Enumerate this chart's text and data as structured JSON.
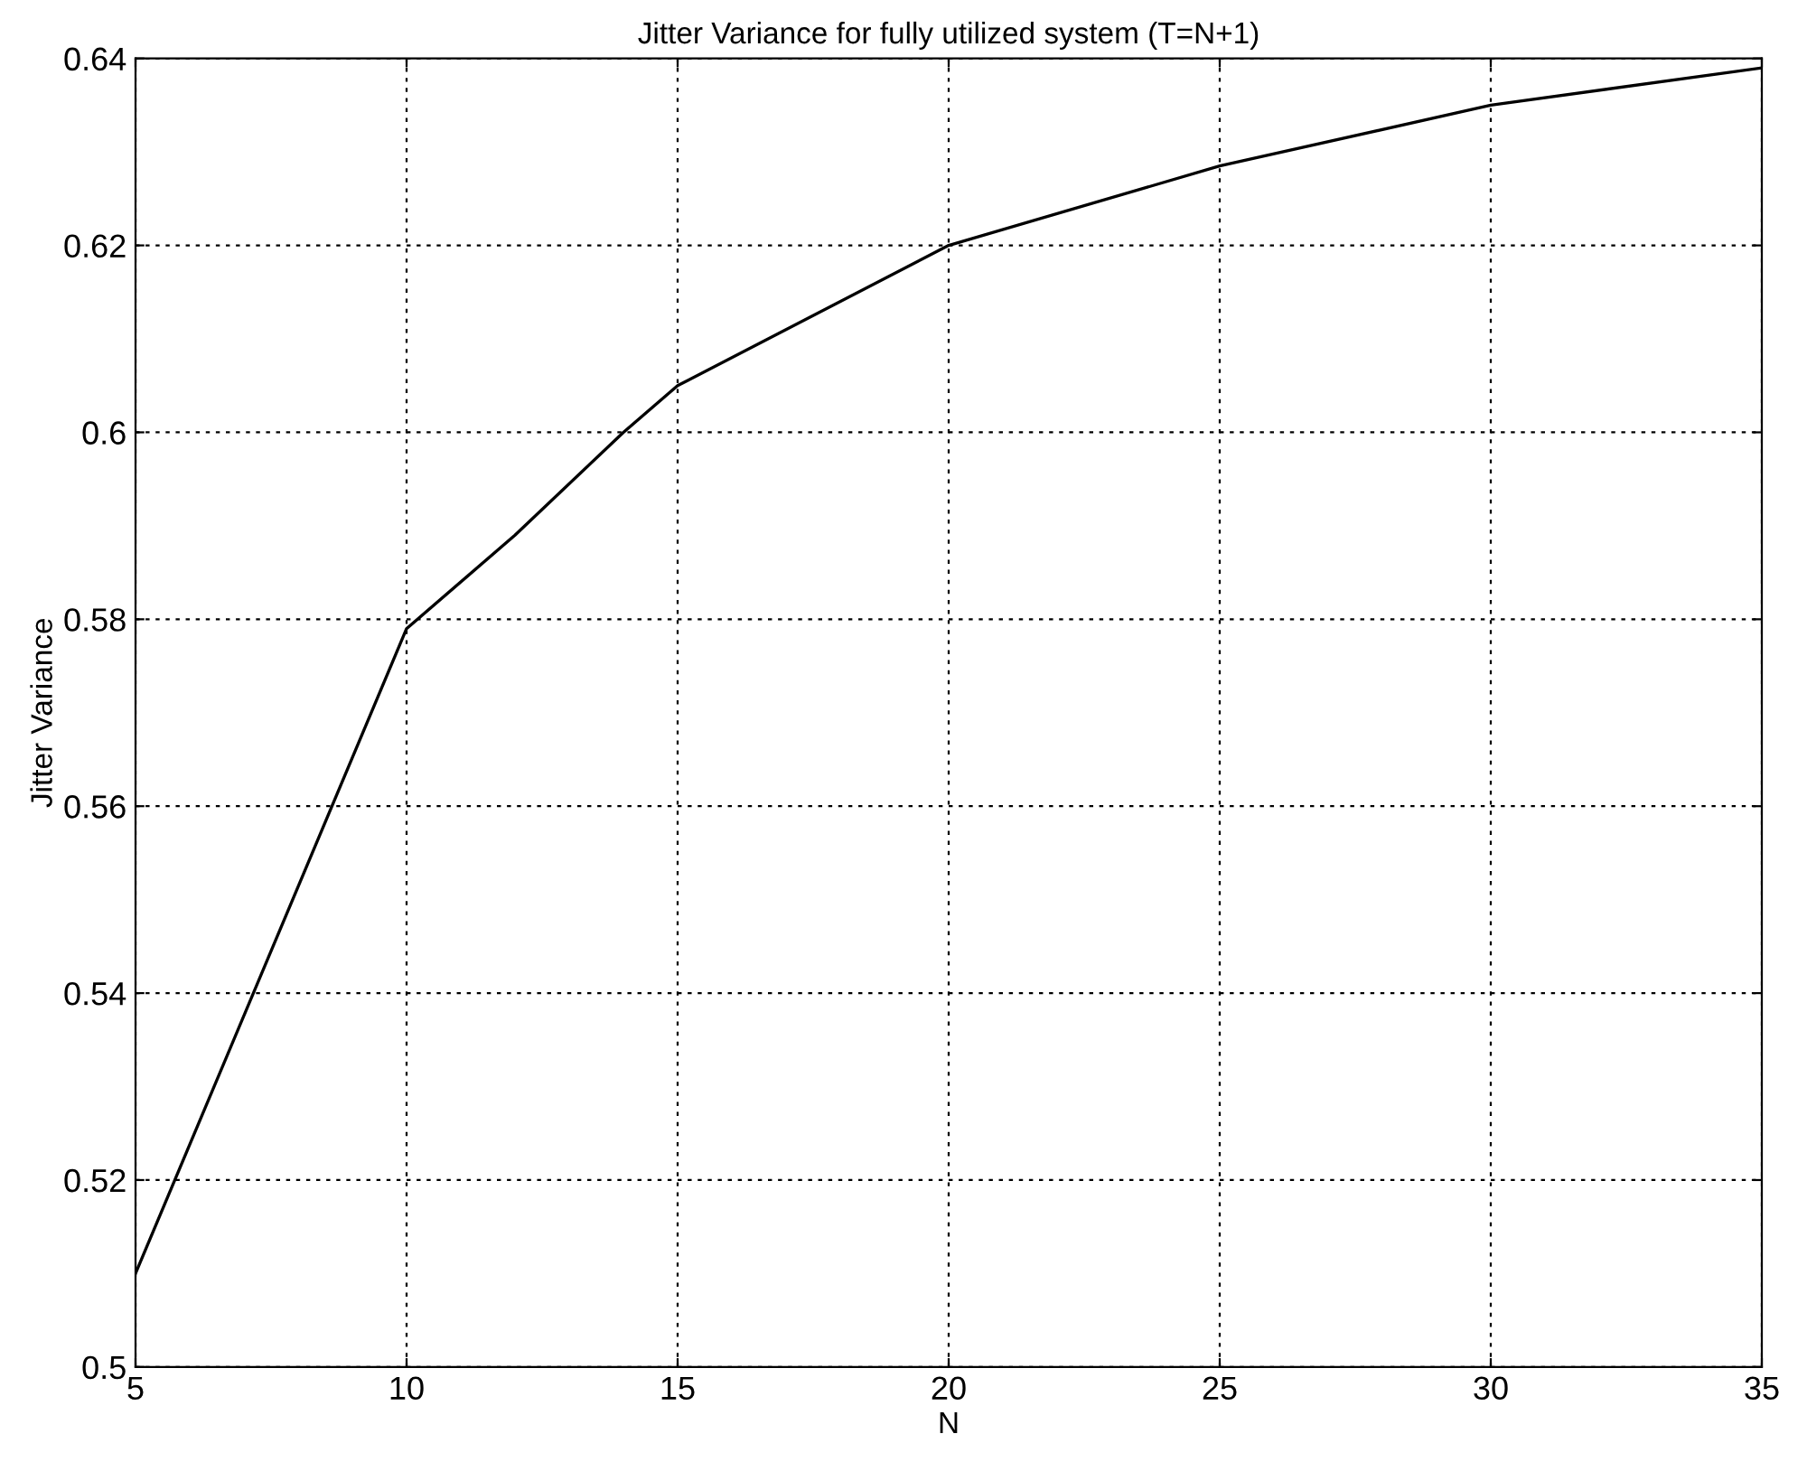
{
  "chart_data": {
    "type": "line",
    "title": "Jitter Variance for fully utilized system (T=N+1)",
    "xlabel": "N",
    "ylabel": "Jitter Variance",
    "x": [
      5,
      10,
      12,
      14,
      15,
      20,
      25,
      30,
      35
    ],
    "series": [
      {
        "color": "#000000",
        "values": [
          0.51,
          0.579,
          0.589,
          0.6,
          0.605,
          0.62,
          0.6285,
          0.635,
          0.639
        ]
      }
    ],
    "xlim": [
      5,
      35
    ],
    "xticks": [
      5,
      10,
      15,
      20,
      25,
      30,
      35
    ],
    "ylim": [
      0.5,
      0.64
    ],
    "yticks": [
      0.5,
      0.52,
      0.54,
      0.56,
      0.58,
      0.6,
      0.62,
      0.64
    ],
    "grid": true,
    "marker": "none",
    "line_style": "solid"
  }
}
